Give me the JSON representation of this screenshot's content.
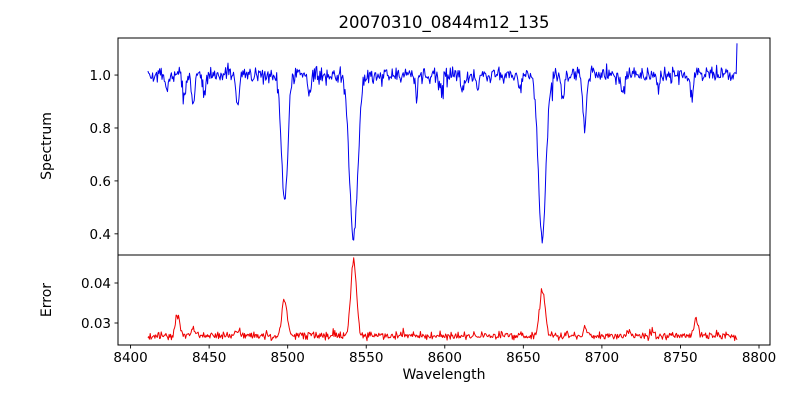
{
  "figure": {
    "title": "20070310_0844m12_135"
  },
  "chart_data": {
    "type": "line",
    "title": "20070310_0844m12_135",
    "xlabel": "Wavelength",
    "legend": null,
    "grid": false,
    "xlim": [
      8392,
      8807
    ],
    "xticks": [
      8400,
      8450,
      8500,
      8550,
      8600,
      8650,
      8700,
      8750,
      8800
    ],
    "x_data_range": [
      8411,
      8786
    ],
    "x_step": 0.5,
    "noise_seed": 42,
    "panels": [
      {
        "name": "Spectrum",
        "ylabel": "Spectrum",
        "ylim": [
          0.32,
          1.14
        ],
        "yticks": [
          "0.4",
          "0.6",
          "0.8",
          "1.0"
        ],
        "color": "#0000ee",
        "baseline": 1.0,
        "noise_sigma": 0.015,
        "end_value": 1.12,
        "features": [
          {
            "center": 8423,
            "amplitude": -0.06,
            "sigma": 0.8
          },
          {
            "center": 8434,
            "amplitude": -0.09,
            "sigma": 0.9
          },
          {
            "center": 8440,
            "amplitude": -0.12,
            "sigma": 1.0
          },
          {
            "center": 8447,
            "amplitude": -0.08,
            "sigma": 0.8
          },
          {
            "center": 8468,
            "amplitude": -0.12,
            "sigma": 1.0
          },
          {
            "center": 8498,
            "amplitude": -0.48,
            "sigma": 2.0
          },
          {
            "center": 8514,
            "amplitude": -0.08,
            "sigma": 0.9
          },
          {
            "center": 8542,
            "amplitude": -0.62,
            "sigma": 2.6
          },
          {
            "center": 8582,
            "amplitude": -0.07,
            "sigma": 0.9
          },
          {
            "center": 8598,
            "amplitude": -0.06,
            "sigma": 0.8
          },
          {
            "center": 8611,
            "amplitude": -0.06,
            "sigma": 0.8
          },
          {
            "center": 8621,
            "amplitude": -0.07,
            "sigma": 0.9
          },
          {
            "center": 8648,
            "amplitude": -0.06,
            "sigma": 0.8
          },
          {
            "center": 8662,
            "amplitude": -0.62,
            "sigma": 2.4
          },
          {
            "center": 8675,
            "amplitude": -0.1,
            "sigma": 0.9
          },
          {
            "center": 8689,
            "amplitude": -0.21,
            "sigma": 1.1
          },
          {
            "center": 8713,
            "amplitude": -0.07,
            "sigma": 0.9
          },
          {
            "center": 8736,
            "amplitude": -0.06,
            "sigma": 0.8
          },
          {
            "center": 8757,
            "amplitude": -0.07,
            "sigma": 0.9
          }
        ]
      },
      {
        "name": "Error",
        "ylabel": "Error",
        "ylim": [
          0.0245,
          0.047
        ],
        "yticks": [
          "0.03",
          "0.04"
        ],
        "color": "#ee0000",
        "baseline": 0.0268,
        "noise_sigma": 0.00045,
        "end_value": 0.0258,
        "features": [
          {
            "center": 8430,
            "amplitude": 0.0045,
            "sigma": 1.5
          },
          {
            "center": 8440,
            "amplitude": 0.002,
            "sigma": 1.2
          },
          {
            "center": 8468,
            "amplitude": 0.0015,
            "sigma": 1.2
          },
          {
            "center": 8498,
            "amplitude": 0.0095,
            "sigma": 1.6
          },
          {
            "center": 8542,
            "amplitude": 0.0185,
            "sigma": 1.8
          },
          {
            "center": 8662,
            "amplitude": 0.0115,
            "sigma": 1.7
          },
          {
            "center": 8689,
            "amplitude": 0.002,
            "sigma": 1.2
          },
          {
            "center": 8717,
            "amplitude": 0.0015,
            "sigma": 1.0
          },
          {
            "center": 8760,
            "amplitude": 0.0042,
            "sigma": 1.3
          }
        ]
      }
    ]
  }
}
